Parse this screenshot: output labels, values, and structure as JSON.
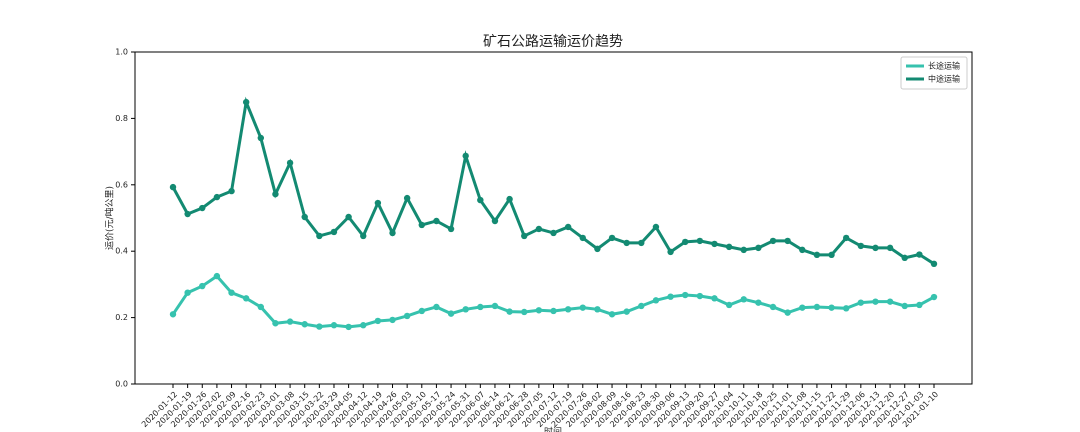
{
  "chart_data": {
    "type": "line",
    "title": "矿石公路运输运价趋势",
    "x_label": "时间",
    "y_label": "运价(元/吨公里)",
    "categories": [
      "2020-01-12",
      "2020-01-19",
      "2020-01-26",
      "2020-02-02",
      "2020-02-09",
      "2020-02-16",
      "2020-02-23",
      "2020-03-01",
      "2020-03-08",
      "2020-03-15",
      "2020-03-22",
      "2020-03-29",
      "2020-04-05",
      "2020-04-12",
      "2020-04-19",
      "2020-04-26",
      "2020-05-03",
      "2020-05-10",
      "2020-05-17",
      "2020-05-24",
      "2020-05-31",
      "2020-06-07",
      "2020-06-14",
      "2020-06-21",
      "2020-06-28",
      "2020-07-05",
      "2020-07-12",
      "2020-07-19",
      "2020-07-26",
      "2020-08-02",
      "2020-08-09",
      "2020-08-16",
      "2020-08-23",
      "2020-08-30",
      "2020-09-06",
      "2020-09-13",
      "2020-09-20",
      "2020-09-27",
      "2020-10-04",
      "2020-10-11",
      "2020-10-18",
      "2020-10-25",
      "2020-11-01",
      "2020-11-08",
      "2020-11-15",
      "2020-11-22",
      "2020-11-29",
      "2020-12-06",
      "2020-12-13",
      "2020-12-20",
      "2020-12-27",
      "2021-01-03",
      "2021-01-10"
    ],
    "series": [
      {
        "name": "长途运输",
        "color": "#36c2ae",
        "values": [
          0.21,
          0.275,
          0.295,
          0.325,
          0.275,
          0.258,
          0.232,
          0.183,
          0.188,
          0.18,
          0.173,
          0.177,
          0.172,
          0.177,
          0.19,
          0.193,
          0.205,
          0.22,
          0.232,
          0.212,
          0.225,
          0.232,
          0.235,
          0.218,
          0.217,
          0.222,
          0.22,
          0.225,
          0.23,
          0.225,
          0.21,
          0.218,
          0.235,
          0.252,
          0.263,
          0.268,
          0.265,
          0.258,
          0.238,
          0.255,
          0.245,
          0.232,
          0.215,
          0.23,
          0.232,
          0.23,
          0.228,
          0.245,
          0.248,
          0.248,
          0.235,
          0.238,
          0.262
        ]
      },
      {
        "name": "中途运输",
        "color": "#138a72",
        "values": [
          0.593,
          0.512,
          0.53,
          0.563,
          0.581,
          0.849,
          0.741,
          0.572,
          0.666,
          0.503,
          0.446,
          0.458,
          0.503,
          0.446,
          0.545,
          0.455,
          0.56,
          0.479,
          0.491,
          0.467,
          0.687,
          0.554,
          0.491,
          0.557,
          0.446,
          0.467,
          0.455,
          0.473,
          0.44,
          0.407,
          0.44,
          0.425,
          0.425,
          0.473,
          0.398,
          0.428,
          0.431,
          0.422,
          0.413,
          0.404,
          0.41,
          0.431,
          0.431,
          0.404,
          0.389,
          0.389,
          0.44,
          0.416,
          0.41,
          0.41,
          0.38,
          0.39,
          0.362
        ]
      }
    ],
    "ylim": [
      0,
      1
    ],
    "yticks": [
      {
        "value": 0,
        "label": "0.0"
      },
      {
        "value": 0.2,
        "label": "0.2"
      },
      {
        "value": 0.4,
        "label": "0.4"
      },
      {
        "value": 0.6,
        "label": "0.6"
      },
      {
        "value": 0.8,
        "label": "0.8"
      },
      {
        "value": 1,
        "label": "1.0"
      }
    ],
    "legend": "upper right"
  }
}
